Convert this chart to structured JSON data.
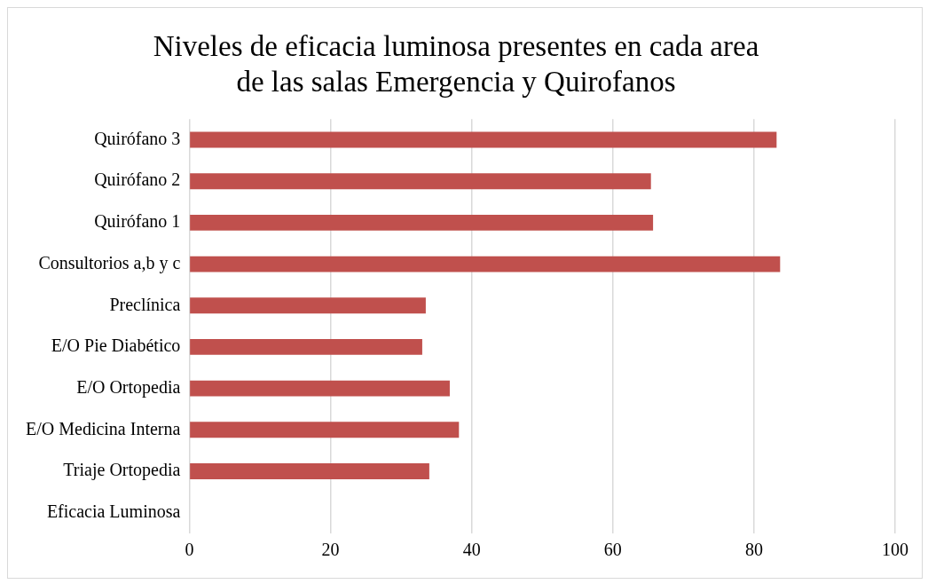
{
  "chart_data": {
    "type": "bar",
    "orientation": "horizontal",
    "title": "Niveles de eficacia luminosa presentes en cada area\nde las salas Emergencia y Quirofanos",
    "categories": [
      "Quirófano 3",
      "Quirófano 2",
      "Quirófano 1",
      "Consultorios a,b y c",
      "Preclínica",
      "E/O Pie Diabético",
      "E/O Ortopedia",
      "E/O Medicina Interna",
      "Triaje Ortopedia",
      "Eficacia Luminosa"
    ],
    "values": [
      83.2,
      65.4,
      65.7,
      83.7,
      33.5,
      33.0,
      36.9,
      38.2,
      34.0,
      null
    ],
    "color": "#c0504d",
    "xlim": [
      0,
      100
    ],
    "xticks": [
      0,
      20,
      40,
      60,
      80,
      100
    ],
    "grid": "x"
  }
}
